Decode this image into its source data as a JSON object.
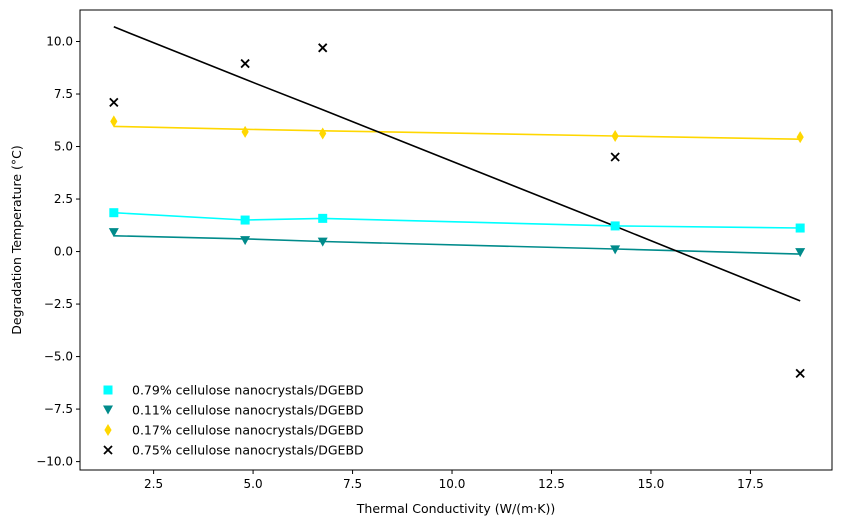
{
  "chart_data": {
    "type": "scatter",
    "title": "",
    "xlabel": "Thermal Conductivity (W/(m·K))",
    "ylabel": "Degradation Temperature (°C)",
    "xlim": [
      0.65,
      19.55
    ],
    "ylim": [
      -10.4,
      11.5
    ],
    "xticks": [
      2.5,
      5.0,
      7.5,
      10.0,
      12.5,
      15.0,
      17.5
    ],
    "xtick_labels": [
      "2.5",
      "5.0",
      "7.5",
      "10.0",
      "12.5",
      "15.0",
      "17.5"
    ],
    "yticks": [
      -10.0,
      -7.5,
      -5.0,
      -2.5,
      0.0,
      2.5,
      5.0,
      7.5,
      10.0
    ],
    "ytick_labels": [
      "−10.0",
      "−7.5",
      "−5.0",
      "−2.5",
      "0.0",
      "2.5",
      "5.0",
      "7.5",
      "10.0"
    ],
    "grid": false,
    "legend_position": "lower-left",
    "x": [
      1.5,
      4.8,
      6.75,
      14.1,
      18.75
    ],
    "series": [
      {
        "name": "0.79% cellulose nanocrystals/DGEBD",
        "marker": "square",
        "color": "#00ffff",
        "values": [
          1.85,
          1.5,
          1.58,
          1.22,
          1.12
        ],
        "fit": [
          1.85,
          1.5,
          1.58,
          1.22,
          1.12
        ]
      },
      {
        "name": "0.11% cellulose nanocrystals/DGEBD",
        "marker": "triangle-down",
        "color": "#008b8b",
        "values": [
          0.9,
          0.52,
          0.45,
          0.08,
          -0.05
        ],
        "fit": [
          0.75,
          0.6,
          0.48,
          0.12,
          -0.12
        ]
      },
      {
        "name": "0.17% cellulose nanocrystals/DGEBD",
        "marker": "diamond",
        "color": "#ffd700",
        "values": [
          6.2,
          5.7,
          5.62,
          5.5,
          5.45
        ],
        "fit": [
          5.96,
          5.82,
          5.75,
          5.5,
          5.35
        ]
      },
      {
        "name": "0.75% cellulose nanocrystals/DGEBD",
        "marker": "x",
        "color": "#000000",
        "values": [
          7.1,
          8.95,
          9.7,
          4.5,
          -5.8
        ],
        "fit": [
          10.7,
          8.2,
          6.75,
          1.2,
          -2.35
        ]
      }
    ]
  }
}
